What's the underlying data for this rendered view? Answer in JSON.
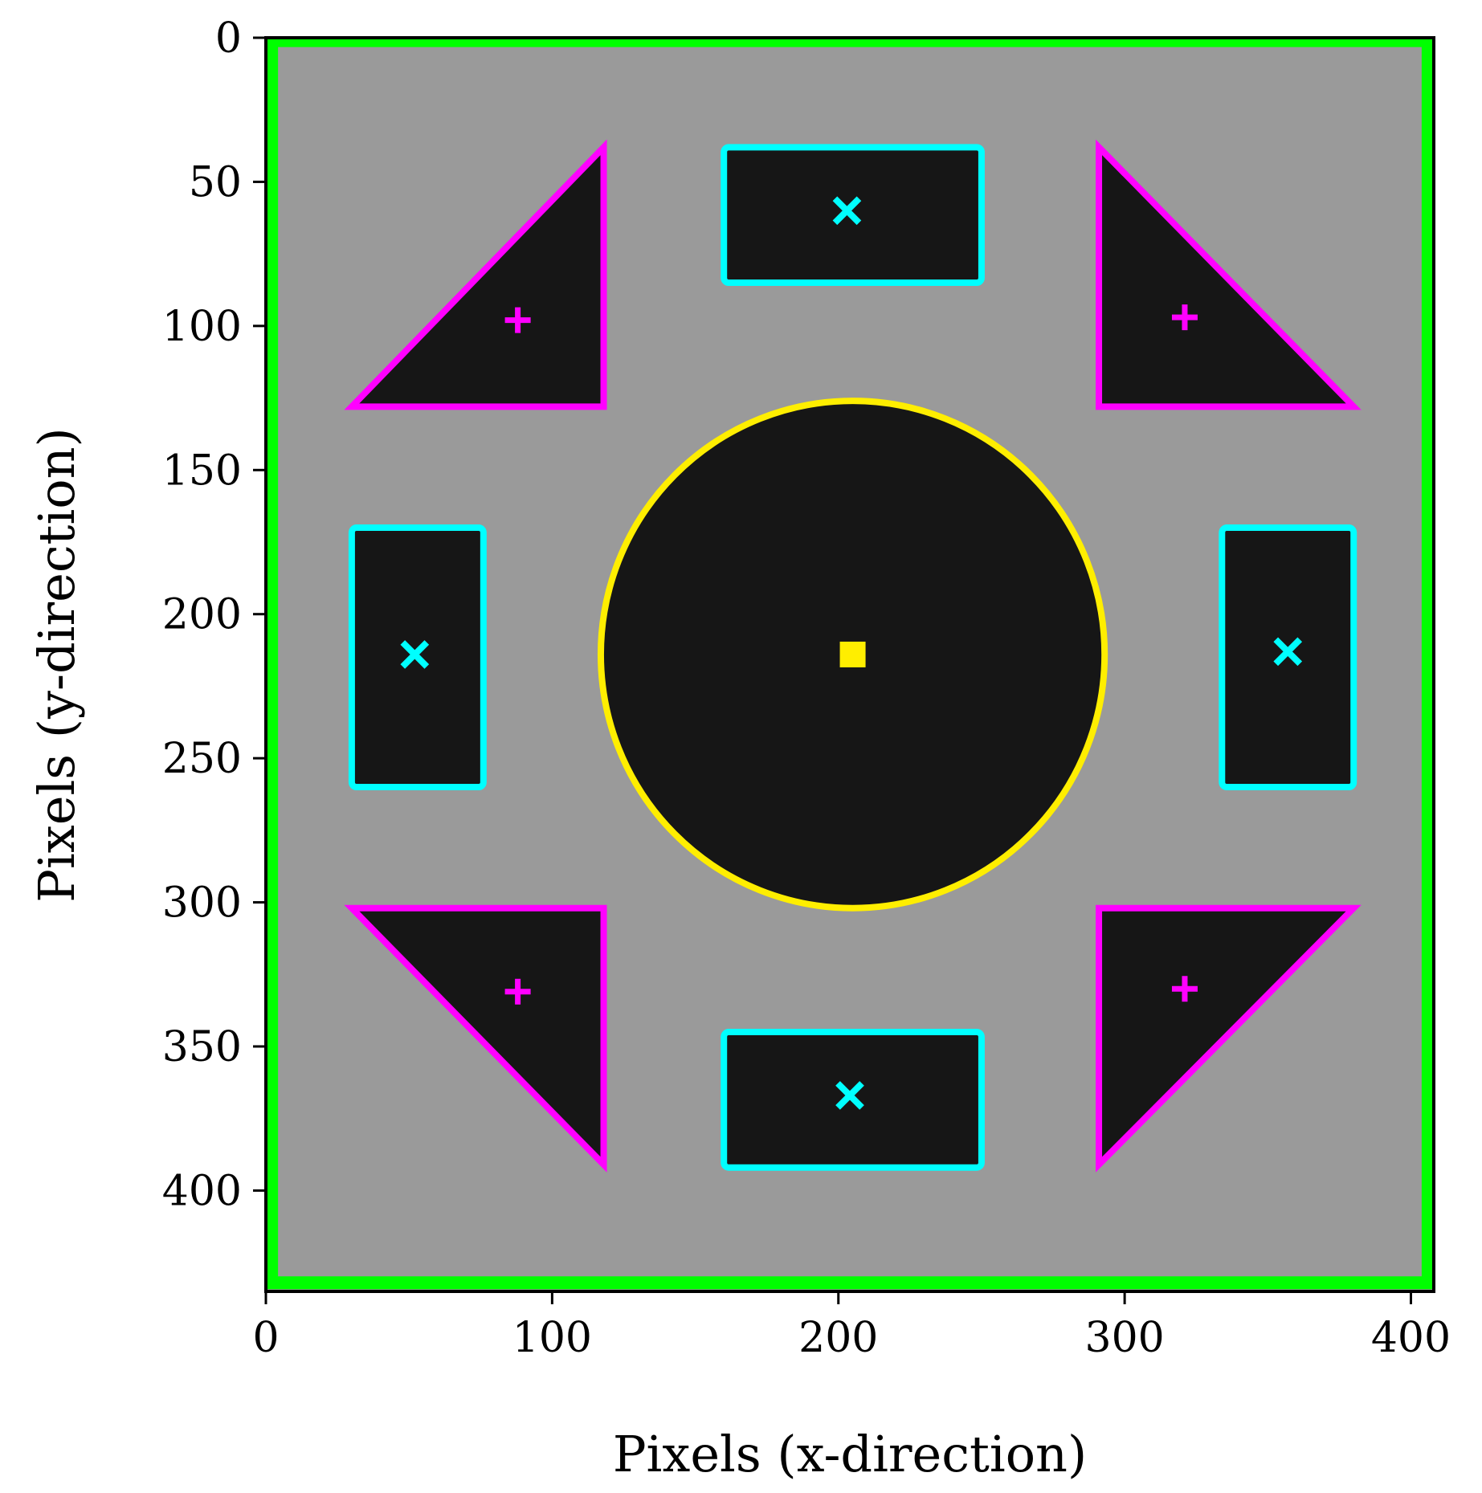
{
  "chart_data": {
    "type": "image",
    "xlabel": "Pixels (x-direction)",
    "ylabel": "Pixels (y-direction)",
    "xlim": [
      0,
      408
    ],
    "ylim": [
      435,
      0
    ],
    "y_inverted": true,
    "grid": false,
    "xticks": [
      0,
      100,
      200,
      300,
      400
    ],
    "yticks": [
      0,
      50,
      100,
      150,
      200,
      250,
      300,
      350,
      400
    ],
    "colors": {
      "background": "#9a9a9a",
      "shape_fill": "#161616",
      "border": "#00ff00",
      "rectangle": "#00ffff",
      "triangle": "#ff00ff",
      "circle": "#ffee00"
    },
    "border": {
      "x0": 2,
      "y0": 1,
      "x1": 406,
      "y1": 432
    },
    "circle": {
      "cx": 205,
      "cy": 214,
      "r": 88
    },
    "rectangles": [
      {
        "x0": 160,
        "y0": 38,
        "x1": 250,
        "y1": 85,
        "cx": 203,
        "cy": 60
      },
      {
        "x0": 30,
        "y0": 170,
        "x1": 76,
        "y1": 260,
        "cx": 52,
        "cy": 214
      },
      {
        "x0": 334,
        "y0": 170,
        "x1": 380,
        "y1": 260,
        "cx": 357,
        "cy": 213
      },
      {
        "x0": 160,
        "y0": 345,
        "x1": 250,
        "y1": 392,
        "cx": 204,
        "cy": 367
      }
    ],
    "triangles": [
      {
        "points": [
          [
            118,
            38
          ],
          [
            30,
            128
          ],
          [
            118,
            128
          ]
        ],
        "cx": 88,
        "cy": 98
      },
      {
        "points": [
          [
            291,
            38
          ],
          [
            380,
            128
          ],
          [
            291,
            128
          ]
        ],
        "cx": 321,
        "cy": 97
      },
      {
        "points": [
          [
            30,
            302
          ],
          [
            118,
            302
          ],
          [
            118,
            391
          ]
        ],
        "cx": 88,
        "cy": 331
      },
      {
        "points": [
          [
            291,
            302
          ],
          [
            380,
            302
          ],
          [
            291,
            391
          ]
        ],
        "cx": 321,
        "cy": 330
      }
    ]
  }
}
